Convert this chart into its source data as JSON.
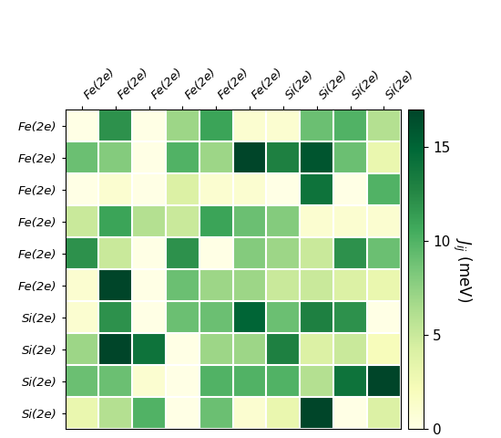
{
  "labels": [
    "Fe(2e)",
    "Fe(2e)",
    "Fe(2e)",
    "Fe(2e)",
    "Fe(2e)",
    "Fe(2e)",
    "Si(2e)",
    "Si(2e)",
    "Si(2e)",
    "Si(2e)"
  ],
  "matrix": [
    [
      0,
      12,
      0,
      7,
      11,
      1,
      1,
      9,
      10,
      6
    ],
    [
      9,
      8,
      0,
      10,
      7,
      17,
      13,
      16,
      9,
      3
    ],
    [
      0,
      1,
      0,
      4,
      1,
      1,
      0,
      14,
      0,
      10
    ],
    [
      5,
      11,
      6,
      5,
      11,
      9,
      8,
      1,
      1,
      1
    ],
    [
      12,
      5,
      0,
      12,
      0,
      8,
      7,
      5,
      12,
      9
    ],
    [
      1,
      17,
      0,
      9,
      7,
      7,
      5,
      5,
      4,
      3
    ],
    [
      1,
      12,
      0,
      9,
      9,
      15,
      9,
      13,
      12,
      0
    ],
    [
      7,
      17,
      14,
      0,
      7,
      7,
      13,
      4,
      5,
      2
    ],
    [
      9,
      9,
      1,
      0,
      10,
      10,
      10,
      6,
      14,
      17
    ],
    [
      3,
      6,
      10,
      0,
      9,
      1,
      3,
      17,
      0,
      4
    ]
  ],
  "vmin": 0,
  "vmax": 17,
  "cmap": "YlGn",
  "colorbar_label": "$\\mathit{J}_{ij}$ (meV)",
  "colorbar_ticks": [
    0,
    5,
    10,
    15
  ],
  "tick_fontsize": 9.5,
  "cbar_fontsize": 11,
  "cbar_label_fontsize": 12
}
